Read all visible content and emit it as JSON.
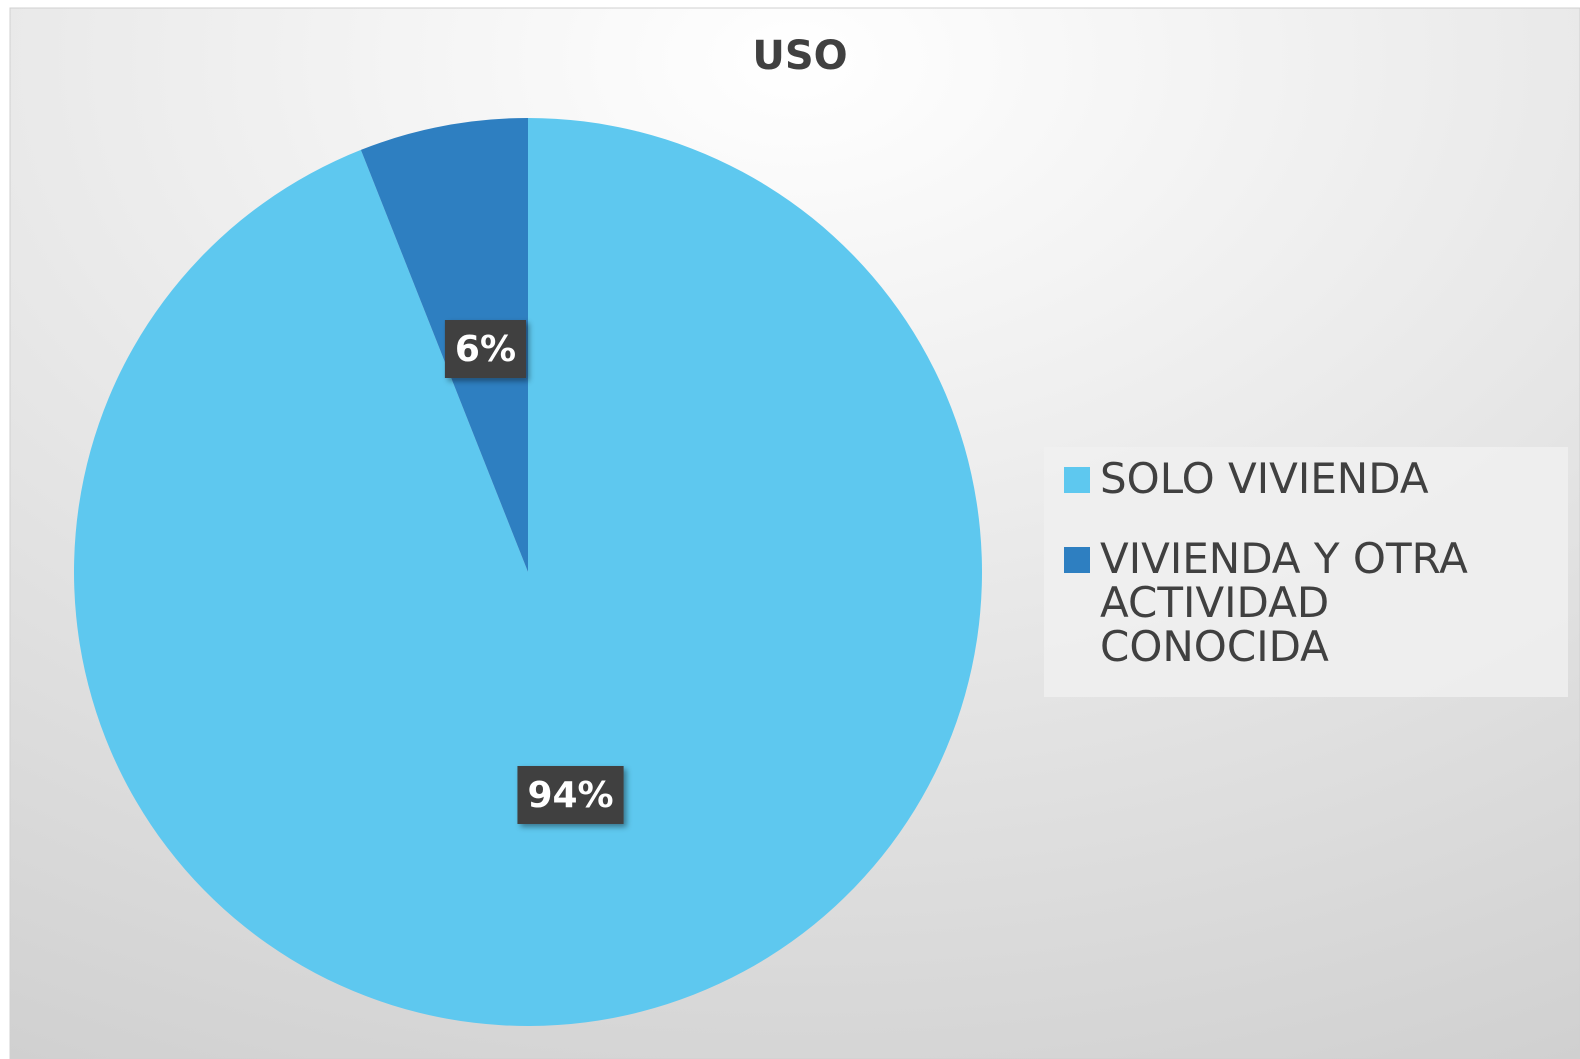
{
  "chart_data": {
    "type": "pie",
    "title": "USO",
    "categories": [
      "SOLO VIVIENDA",
      "VIVIENDA Y OTRA ACTIVIDAD CONOCIDA"
    ],
    "values": [
      94,
      6
    ],
    "value_labels": [
      "94%",
      "6%"
    ],
    "colors": [
      "#5ec8ef",
      "#2e7fc1"
    ],
    "legend": "right"
  }
}
